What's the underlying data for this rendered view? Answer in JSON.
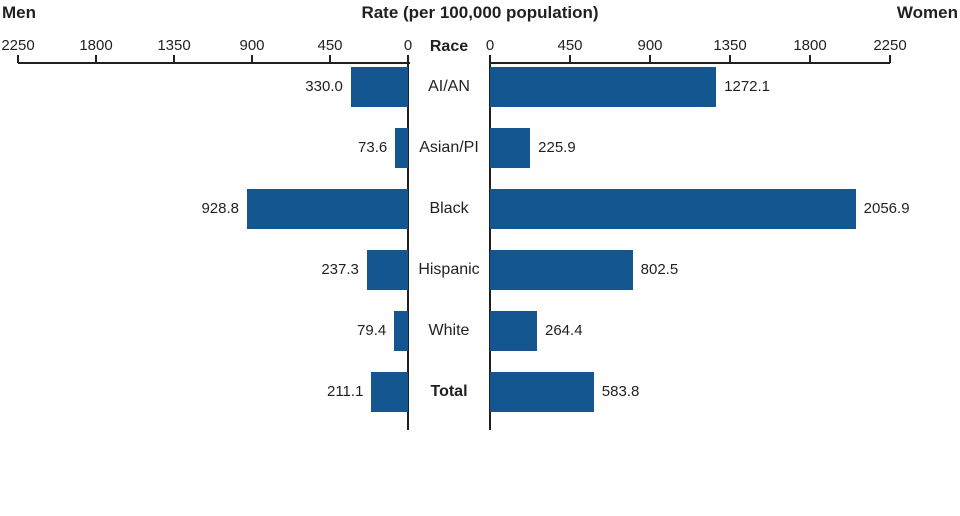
{
  "chart_data": {
    "type": "bar",
    "subtype": "diverging-horizontal (population pyramid style)",
    "title": "Rate (per 100,000 population)",
    "left_series_label": "Men",
    "right_series_label": "Women",
    "category_axis_label": "Race",
    "categories": [
      "AI/AN",
      "Asian/PI",
      "Black",
      "Hispanic",
      "White",
      "Total"
    ],
    "bold_categories": [
      "Total"
    ],
    "series": [
      {
        "name": "Men",
        "values": [
          330.0,
          73.6,
          928.8,
          237.3,
          79.4,
          211.1
        ]
      },
      {
        "name": "Women",
        "values": [
          1272.1,
          225.9,
          2056.9,
          802.5,
          264.4,
          583.8
        ]
      }
    ],
    "value_label_format": "one-decimal",
    "axis": {
      "min": 0,
      "max": 2250,
      "ticks": [
        0,
        450,
        900,
        1350,
        1800,
        2250
      ],
      "left_axis_direction": "reversed (0 at center)",
      "grid": false
    },
    "legend_position": "none (series named in header)",
    "bar_color": "#14568F",
    "axis_color": "#231F20",
    "text_color": "#231F20"
  }
}
